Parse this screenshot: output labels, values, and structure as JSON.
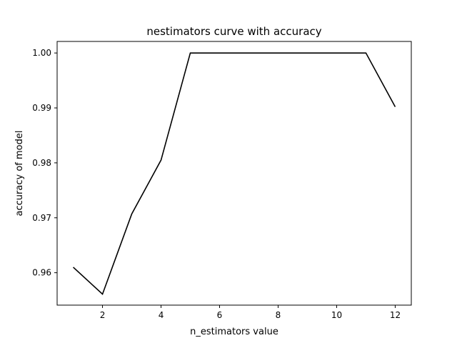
{
  "chart_data": {
    "type": "line",
    "title": "nestimators curve with accuracy",
    "xlabel": "n_estimators value",
    "ylabel": "accuracy of model",
    "xlim": [
      0.45,
      12.55
    ],
    "ylim": [
      0.9541,
      1.0021
    ],
    "x_ticks": [
      {
        "value": 2,
        "label": "2"
      },
      {
        "value": 4,
        "label": "4"
      },
      {
        "value": 6,
        "label": "6"
      },
      {
        "value": 8,
        "label": "8"
      },
      {
        "value": 10,
        "label": "10"
      },
      {
        "value": 12,
        "label": "12"
      }
    ],
    "y_ticks": [
      {
        "value": 0.96,
        "label": "0.96"
      },
      {
        "value": 0.97,
        "label": "0.97"
      },
      {
        "value": 0.98,
        "label": "0.98"
      },
      {
        "value": 0.99,
        "label": "0.99"
      },
      {
        "value": 1.0,
        "label": "1.00"
      }
    ],
    "grid": false,
    "legend": "none",
    "series": [
      {
        "color": "#000000",
        "x": [
          1,
          2,
          3,
          4,
          5,
          6,
          7,
          8,
          9,
          10,
          11,
          12
        ],
        "y": [
          0.961,
          0.9561,
          0.9707,
          0.9805,
          1.0,
          1.0,
          1.0,
          1.0,
          1.0,
          1.0,
          1.0,
          0.9902
        ]
      }
    ]
  }
}
